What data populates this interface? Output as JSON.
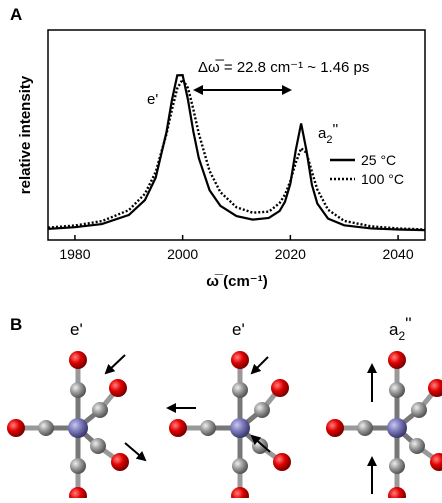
{
  "chart_data": {
    "type": "line",
    "panel_label": "A",
    "y_label": "relative intensity",
    "x_label": "ω̅ (cm⁻¹)",
    "annotations": {
      "splitting": "Δω̅ = 22.8 cm⁻¹ ~ 1.46 ps",
      "peak1": "e'",
      "peak2": {
        "base": "a",
        "sub": "2",
        "sup": "''"
      }
    },
    "x": [
      1975,
      1980,
      1985,
      1990,
      1993,
      1995,
      1997,
      1998,
      1999,
      2000,
      2001,
      2002,
      2003,
      2005,
      2007,
      2010,
      2013,
      2016,
      2018,
      2019,
      2020,
      2021,
      2022,
      2023,
      2024,
      2025,
      2027,
      2030,
      2035,
      2040,
      2045
    ],
    "series": [
      {
        "name": "25 °C",
        "color": "#000000",
        "dash": "solid",
        "values": [
          0.053,
          0.061,
          0.076,
          0.119,
          0.19,
          0.297,
          0.514,
          0.665,
          0.784,
          0.785,
          0.666,
          0.515,
          0.39,
          0.237,
          0.163,
          0.114,
          0.097,
          0.105,
          0.138,
          0.182,
          0.268,
          0.427,
          0.555,
          0.425,
          0.263,
          0.174,
          0.102,
          0.07,
          0.055,
          0.05,
          0.047
        ]
      },
      {
        "name": "100 °C",
        "color": "#000000",
        "dash": "dotted",
        "values": [
          0.059,
          0.069,
          0.09,
          0.142,
          0.22,
          0.324,
          0.505,
          0.62,
          0.722,
          0.765,
          0.723,
          0.621,
          0.507,
          0.329,
          0.228,
          0.156,
          0.13,
          0.135,
          0.176,
          0.216,
          0.281,
          0.368,
          0.437,
          0.415,
          0.325,
          0.241,
          0.144,
          0.091,
          0.065,
          0.055,
          0.05
        ]
      }
    ],
    "xlim": [
      1975,
      2045
    ],
    "xticks": [
      1980,
      2000,
      2020,
      2040
    ],
    "ylim": [
      0,
      1
    ],
    "legend": "right"
  },
  "panel_b": {
    "panel_label": "B",
    "modes": [
      {
        "label": {
          "base": "e'"
        }
      },
      {
        "label": {
          "base": "e'"
        }
      },
      {
        "label": {
          "base": "a",
          "sub": "2",
          "sup": "''"
        }
      }
    ]
  }
}
